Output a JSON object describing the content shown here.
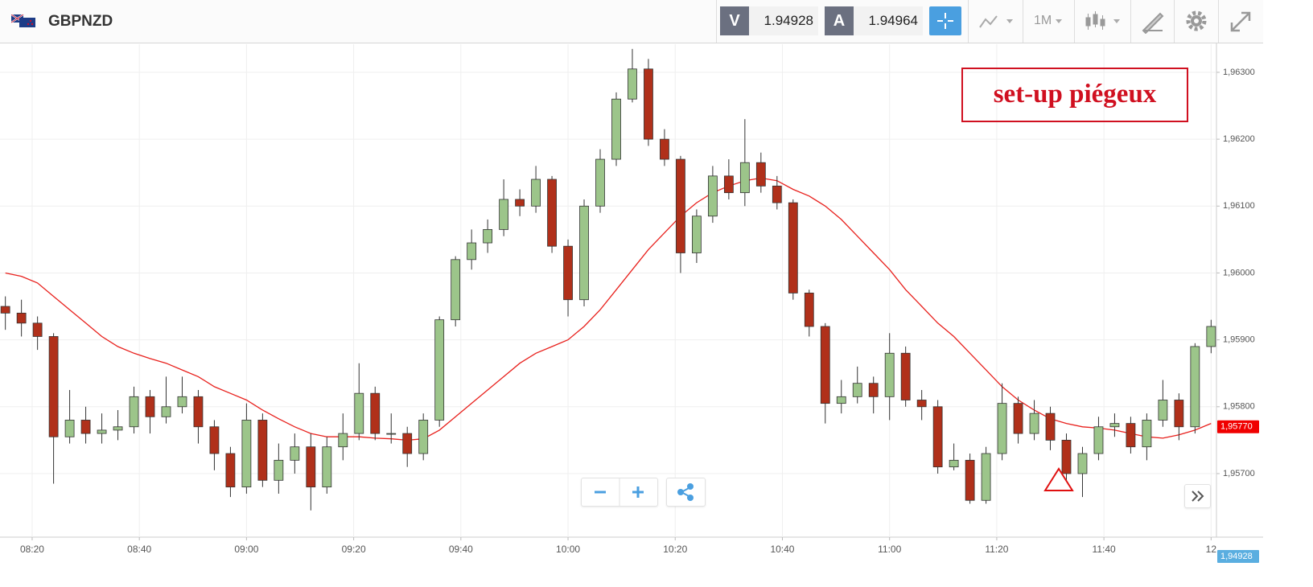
{
  "toolbar": {
    "symbol": "GBPNZD",
    "sell_label": "V",
    "sell_price": "1.94928",
    "buy_label": "A",
    "buy_price": "1.94964",
    "timeframe": "1M"
  },
  "chart_data": {
    "type": "candlestick",
    "annotation": "set-up piégeux",
    "x": [
      "08:15",
      "08:18",
      "08:21",
      "08:24",
      "08:27",
      "08:30",
      "08:33",
      "08:36",
      "08:39",
      "08:42",
      "08:45",
      "08:48",
      "08:51",
      "08:54",
      "08:57",
      "09:00",
      "09:03",
      "09:06",
      "09:09",
      "09:12",
      "09:15",
      "09:18",
      "09:21",
      "09:24",
      "09:27",
      "09:30",
      "09:33",
      "09:36",
      "09:39",
      "09:42",
      "09:45",
      "09:48",
      "09:51",
      "09:54",
      "09:57",
      "10:00",
      "10:03",
      "10:06",
      "10:09",
      "10:12",
      "10:15",
      "10:18",
      "10:21",
      "10:24",
      "10:27",
      "10:30",
      "10:33",
      "10:36",
      "10:39",
      "10:42",
      "10:45",
      "10:48",
      "10:51",
      "10:54",
      "10:57",
      "11:00",
      "11:03",
      "11:06",
      "11:09",
      "11:12",
      "11:15",
      "11:18",
      "11:21",
      "11:24",
      "11:27",
      "11:30",
      "11:33",
      "11:36",
      "11:39",
      "11:42",
      "11:45",
      "11:48",
      "11:51",
      "11:54",
      "11:57",
      "12:00"
    ],
    "open": [
      1.9595,
      1.9594,
      1.95925,
      1.95905,
      1.95755,
      1.9578,
      1.9576,
      1.95765,
      1.9577,
      1.95815,
      1.95785,
      1.958,
      1.95815,
      1.9577,
      1.9573,
      1.9568,
      1.9578,
      1.9569,
      1.9572,
      1.9574,
      1.9568,
      1.9574,
      1.9576,
      1.9582,
      1.9576,
      1.9576,
      1.9573,
      1.9578,
      1.9593,
      1.9602,
      1.96045,
      1.96065,
      1.9611,
      1.961,
      1.9614,
      1.9604,
      1.9596,
      1.961,
      1.9617,
      1.9626,
      1.96305,
      1.962,
      1.9617,
      1.9603,
      1.96085,
      1.96145,
      1.9612,
      1.96165,
      1.9613,
      1.96105,
      1.9597,
      1.9592,
      1.95805,
      1.95815,
      1.95835,
      1.95815,
      1.9588,
      1.9581,
      1.958,
      1.9571,
      1.9572,
      1.9566,
      1.9573,
      1.95805,
      1.9576,
      1.9579,
      1.9575,
      1.957,
      1.9573,
      1.9577,
      1.95775,
      1.9574,
      1.9578,
      1.9581,
      1.9577,
      1.9589
    ],
    "high": [
      1.95965,
      1.9596,
      1.95935,
      1.9591,
      1.95825,
      1.958,
      1.9579,
      1.95795,
      1.9583,
      1.95825,
      1.95845,
      1.95845,
      1.95825,
      1.9578,
      1.9574,
      1.95805,
      1.9579,
      1.95745,
      1.9576,
      1.9576,
      1.95755,
      1.9579,
      1.95865,
      1.9583,
      1.9579,
      1.9577,
      1.9579,
      1.95935,
      1.96025,
      1.96065,
      1.9608,
      1.9614,
      1.96125,
      1.9616,
      1.96145,
      1.9605,
      1.9611,
      1.96185,
      1.9627,
      1.96335,
      1.9632,
      1.96215,
      1.96175,
      1.96095,
      1.9616,
      1.9617,
      1.9623,
      1.9618,
      1.96145,
      1.9611,
      1.95975,
      1.95925,
      1.9584,
      1.9586,
      1.95845,
      1.9591,
      1.9589,
      1.95825,
      1.9581,
      1.95745,
      1.9573,
      1.9574,
      1.95835,
      1.95815,
      1.9581,
      1.958,
      1.9576,
      1.9574,
      1.95785,
      1.9579,
      1.95785,
      1.9579,
      1.9584,
      1.9582,
      1.95895,
      1.9593
    ],
    "low": [
      1.95915,
      1.95905,
      1.95885,
      1.95685,
      1.95745,
      1.95745,
      1.95745,
      1.9575,
      1.9576,
      1.9576,
      1.95775,
      1.9579,
      1.95745,
      1.95705,
      1.95665,
      1.9567,
      1.9568,
      1.9567,
      1.957,
      1.95645,
      1.9567,
      1.9572,
      1.9575,
      1.9575,
      1.95745,
      1.9571,
      1.9572,
      1.9577,
      1.9592,
      1.96005,
      1.9603,
      1.96055,
      1.96085,
      1.9609,
      1.9603,
      1.95935,
      1.9595,
      1.9609,
      1.9616,
      1.96255,
      1.9619,
      1.9616,
      1.96,
      1.96015,
      1.96075,
      1.9611,
      1.961,
      1.9612,
      1.96095,
      1.9596,
      1.95905,
      1.95775,
      1.9579,
      1.95805,
      1.9579,
      1.9578,
      1.958,
      1.9578,
      1.957,
      1.95705,
      1.95655,
      1.95655,
      1.9572,
      1.95745,
      1.9575,
      1.95735,
      1.9569,
      1.95665,
      1.9572,
      1.95755,
      1.9573,
      1.9572,
      1.9577,
      1.9575,
      1.9576,
      1.9588
    ],
    "close": [
      1.9594,
      1.95925,
      1.95905,
      1.95755,
      1.9578,
      1.9576,
      1.95765,
      1.9577,
      1.95815,
      1.95785,
      1.958,
      1.95815,
      1.9577,
      1.9573,
      1.9568,
      1.9578,
      1.9569,
      1.9572,
      1.9574,
      1.9568,
      1.9574,
      1.9576,
      1.9582,
      1.9576,
      1.9576,
      1.9573,
      1.9578,
      1.9593,
      1.9602,
      1.96045,
      1.96065,
      1.9611,
      1.961,
      1.9614,
      1.9604,
      1.9596,
      1.961,
      1.9617,
      1.9626,
      1.96305,
      1.962,
      1.9617,
      1.9603,
      1.96085,
      1.96145,
      1.9612,
      1.96165,
      1.9613,
      1.96105,
      1.9597,
      1.9592,
      1.95805,
      1.95815,
      1.95835,
      1.95815,
      1.9588,
      1.9581,
      1.958,
      1.9571,
      1.9572,
      1.9566,
      1.9573,
      1.95805,
      1.9576,
      1.9579,
      1.9575,
      1.957,
      1.9573,
      1.9577,
      1.95775,
      1.9574,
      1.9578,
      1.9581,
      1.9577,
      1.9589,
      1.9592
    ],
    "up_color": "#9cc58a",
    "down_color": "#b0301a",
    "moving_average": {
      "color": "#e8201c",
      "values": [
        1.96,
        1.95995,
        1.95985,
        1.95965,
        1.95945,
        1.95925,
        1.95905,
        1.9589,
        1.9588,
        1.95872,
        1.95865,
        1.95855,
        1.95845,
        1.9583,
        1.9582,
        1.9581,
        1.95795,
        1.95782,
        1.9577,
        1.9576,
        1.95755,
        1.95755,
        1.95755,
        1.95753,
        1.95752,
        1.9575,
        1.95752,
        1.95765,
        1.95785,
        1.95805,
        1.95825,
        1.95845,
        1.95865,
        1.9588,
        1.9589,
        1.959,
        1.9592,
        1.95945,
        1.95975,
        1.96005,
        1.96035,
        1.9606,
        1.96085,
        1.96105,
        1.9612,
        1.9613,
        1.96138,
        1.96142,
        1.96138,
        1.96125,
        1.96115,
        1.961,
        1.9608,
        1.96055,
        1.9603,
        1.96005,
        1.95975,
        1.9595,
        1.95925,
        1.95905,
        1.9588,
        1.95855,
        1.9583,
        1.9581,
        1.95795,
        1.95782,
        1.95775,
        1.9577,
        1.95768,
        1.95765,
        1.9576,
        1.95755,
        1.95753,
        1.95758,
        1.95765,
        1.95775
      ]
    },
    "xlim": [
      "08:14",
      "12:01"
    ],
    "xticks": [
      "08:20",
      "08:40",
      "09:00",
      "09:20",
      "09:40",
      "10:00",
      "10:20",
      "10:40",
      "11:00",
      "11:20",
      "11:40",
      {
        "value": "12:00",
        "label": "12"
      }
    ],
    "ylim": [
      1.95605,
      1.96342
    ],
    "yticks": [
      {
        "value": 1.957,
        "label": "1,95700"
      },
      {
        "value": 1.958,
        "label": "1,95800"
      },
      {
        "value": 1.959,
        "label": "1,95900"
      },
      {
        "value": 1.96,
        "label": "1,96000"
      },
      {
        "value": 1.961,
        "label": "1,96100"
      },
      {
        "value": 1.962,
        "label": "1,96200"
      },
      {
        "value": 1.963,
        "label": "1,96300"
      }
    ],
    "grid": true,
    "price_tags": [
      {
        "value": 1.9577,
        "label": "1,95770",
        "color": "#f00000"
      },
      {
        "value": 1.94928,
        "label": "1,94928",
        "color": "#5aaee0"
      }
    ]
  }
}
